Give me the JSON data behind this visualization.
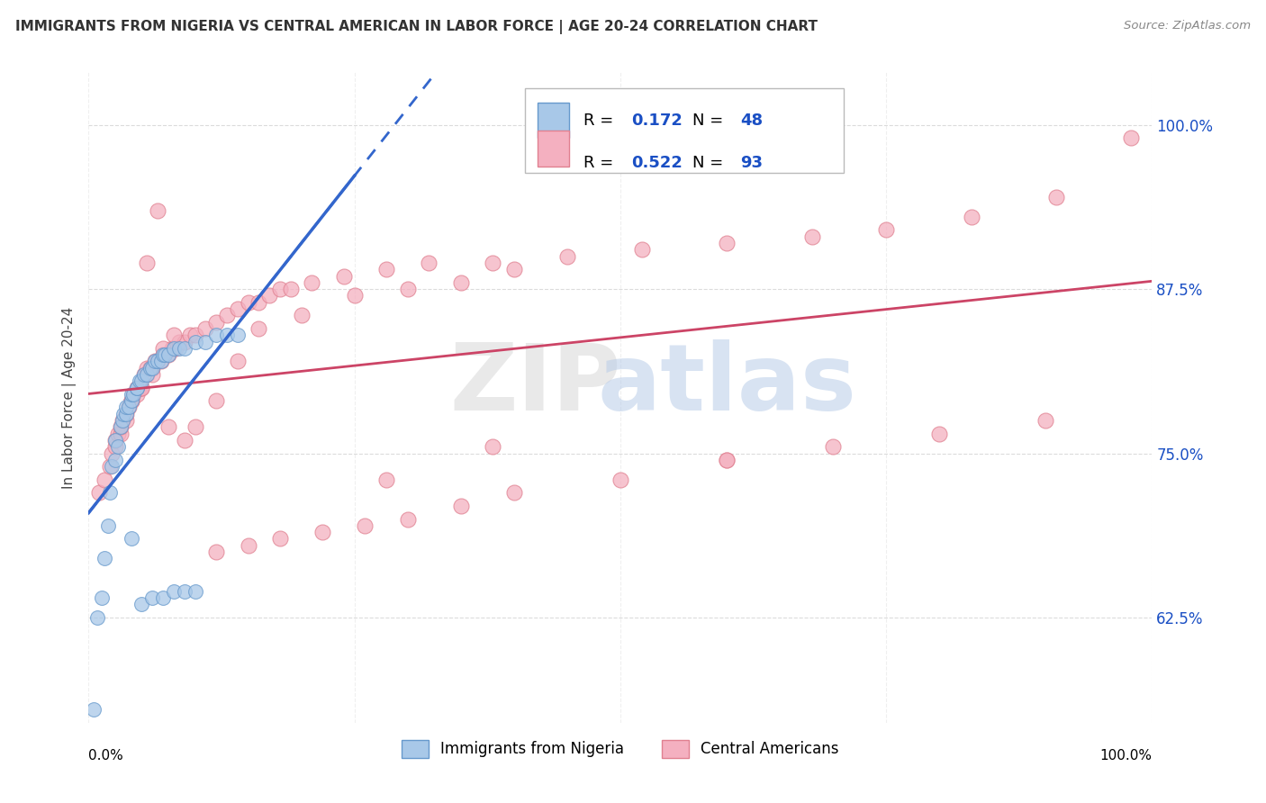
{
  "title": "IMMIGRANTS FROM NIGERIA VS CENTRAL AMERICAN IN LABOR FORCE | AGE 20-24 CORRELATION CHART",
  "source": "Source: ZipAtlas.com",
  "ylabel": "In Labor Force | Age 20-24",
  "ytick_vals": [
    0.625,
    0.75,
    0.875,
    1.0
  ],
  "ytick_labels": [
    "62.5%",
    "75.0%",
    "87.5%",
    "100.0%"
  ],
  "xmin": 0.0,
  "xmax": 1.0,
  "ymin": 0.545,
  "ymax": 1.04,
  "nigeria_color": "#a8c8e8",
  "nigeria_edge": "#6699cc",
  "central_color": "#f4b0c0",
  "central_edge": "#e08090",
  "nigeria_line_color": "#3366cc",
  "central_line_color": "#cc4466",
  "legend_text_color": "#1a4fc4",
  "nigeria_R": "0.172",
  "nigeria_N": "48",
  "central_R": "0.522",
  "central_N": "93",
  "nigeria_x": [
    0.005,
    0.008,
    0.012,
    0.015,
    0.018,
    0.02,
    0.022,
    0.025,
    0.025,
    0.028,
    0.03,
    0.032,
    0.033,
    0.035,
    0.035,
    0.038,
    0.04,
    0.04,
    0.042,
    0.045,
    0.045,
    0.048,
    0.05,
    0.052,
    0.055,
    0.058,
    0.06,
    0.062,
    0.065,
    0.068,
    0.07,
    0.072,
    0.075,
    0.08,
    0.085,
    0.09,
    0.04,
    0.05,
    0.06,
    0.07,
    0.08,
    0.09,
    0.1,
    0.1,
    0.11,
    0.12,
    0.13,
    0.14
  ],
  "nigeria_y": [
    0.555,
    0.625,
    0.64,
    0.67,
    0.695,
    0.72,
    0.74,
    0.745,
    0.76,
    0.755,
    0.77,
    0.775,
    0.78,
    0.78,
    0.785,
    0.785,
    0.79,
    0.795,
    0.795,
    0.8,
    0.8,
    0.805,
    0.805,
    0.81,
    0.81,
    0.815,
    0.815,
    0.82,
    0.82,
    0.82,
    0.825,
    0.825,
    0.825,
    0.83,
    0.83,
    0.83,
    0.685,
    0.635,
    0.64,
    0.64,
    0.645,
    0.645,
    0.645,
    0.835,
    0.835,
    0.84,
    0.84,
    0.84
  ],
  "central_x": [
    0.01,
    0.015,
    0.02,
    0.022,
    0.025,
    0.025,
    0.028,
    0.03,
    0.03,
    0.032,
    0.035,
    0.035,
    0.038,
    0.04,
    0.04,
    0.042,
    0.045,
    0.045,
    0.048,
    0.05,
    0.052,
    0.055,
    0.055,
    0.058,
    0.06,
    0.062,
    0.065,
    0.068,
    0.07,
    0.075,
    0.078,
    0.08,
    0.082,
    0.085,
    0.09,
    0.095,
    0.1,
    0.11,
    0.12,
    0.13,
    0.14,
    0.15,
    0.16,
    0.17,
    0.18,
    0.19,
    0.21,
    0.24,
    0.28,
    0.32,
    0.38,
    0.45,
    0.52,
    0.6,
    0.68,
    0.75,
    0.83,
    0.91,
    0.98,
    0.055,
    0.065,
    0.075,
    0.04,
    0.05,
    0.06,
    0.07,
    0.08,
    0.09,
    0.1,
    0.12,
    0.14,
    0.16,
    0.2,
    0.25,
    0.3,
    0.35,
    0.4,
    0.12,
    0.15,
    0.18,
    0.22,
    0.26,
    0.3,
    0.35,
    0.4,
    0.5,
    0.6,
    0.7,
    0.8,
    0.9,
    0.6,
    0.38,
    0.28
  ],
  "central_y": [
    0.72,
    0.73,
    0.74,
    0.75,
    0.755,
    0.76,
    0.765,
    0.765,
    0.77,
    0.775,
    0.775,
    0.78,
    0.785,
    0.79,
    0.79,
    0.795,
    0.795,
    0.8,
    0.8,
    0.8,
    0.81,
    0.81,
    0.815,
    0.815,
    0.815,
    0.82,
    0.82,
    0.82,
    0.825,
    0.825,
    0.83,
    0.83,
    0.83,
    0.835,
    0.835,
    0.84,
    0.84,
    0.845,
    0.85,
    0.855,
    0.86,
    0.865,
    0.865,
    0.87,
    0.875,
    0.875,
    0.88,
    0.885,
    0.89,
    0.895,
    0.895,
    0.9,
    0.905,
    0.91,
    0.915,
    0.92,
    0.93,
    0.945,
    0.99,
    0.895,
    0.935,
    0.77,
    0.79,
    0.8,
    0.81,
    0.83,
    0.84,
    0.76,
    0.77,
    0.79,
    0.82,
    0.845,
    0.855,
    0.87,
    0.875,
    0.88,
    0.89,
    0.675,
    0.68,
    0.685,
    0.69,
    0.695,
    0.7,
    0.71,
    0.72,
    0.73,
    0.745,
    0.755,
    0.765,
    0.775,
    0.745,
    0.755,
    0.73
  ]
}
